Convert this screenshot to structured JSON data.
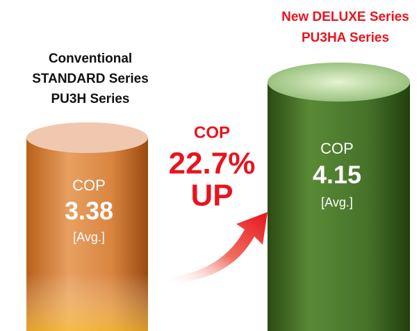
{
  "left": {
    "title_lines": [
      "Conventional",
      "STANDARD Series",
      "PU3H Series"
    ],
    "metric": "COP",
    "value": 3.38,
    "note": "[Avg.]"
  },
  "right": {
    "title_lines": [
      "New DELUXE Series",
      "PU3HA Series"
    ],
    "metric": "COP",
    "value": 4.15,
    "note": "[Avg.]"
  },
  "improvement": {
    "metric": "COP",
    "value": "22.7%",
    "direction": "UP"
  }
}
